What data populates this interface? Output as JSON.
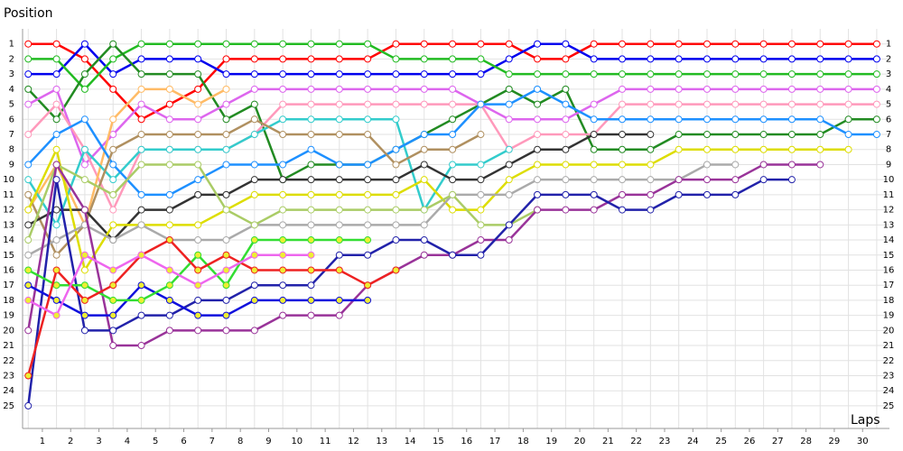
{
  "chart_data": {
    "type": "line",
    "ylabel": "Position",
    "xlabel": "Laps",
    "x": [
      0,
      1,
      2,
      3,
      4,
      5,
      6,
      7,
      8,
      9,
      10,
      11,
      12,
      13,
      14,
      15,
      16,
      17,
      18,
      19,
      20,
      21,
      22,
      23,
      24,
      25,
      26,
      27,
      28,
      29,
      30
    ],
    "xlim": [
      -0.2,
      30.45
    ],
    "xticks": [
      {
        "value": 0.5,
        "label": "1"
      },
      {
        "value": 1.5,
        "label": "2"
      },
      {
        "value": 2.5,
        "label": "3"
      },
      {
        "value": 3.5,
        "label": "4"
      },
      {
        "value": 4.5,
        "label": "5"
      },
      {
        "value": 5.5,
        "label": "6"
      },
      {
        "value": 6.5,
        "label": "7"
      },
      {
        "value": 7.5,
        "label": "8"
      },
      {
        "value": 8.5,
        "label": "9"
      },
      {
        "value": 9.5,
        "label": "10"
      },
      {
        "value": 10.5,
        "label": "11"
      },
      {
        "value": 11.5,
        "label": "12"
      },
      {
        "value": 12.5,
        "label": "13"
      },
      {
        "value": 13.5,
        "label": "14"
      },
      {
        "value": 14.5,
        "label": "15"
      },
      {
        "value": 15.5,
        "label": "16"
      },
      {
        "value": 16.5,
        "label": "17"
      },
      {
        "value": 17.5,
        "label": "18"
      },
      {
        "value": 18.5,
        "label": "19"
      },
      {
        "value": 19.5,
        "label": "20"
      },
      {
        "value": 20.5,
        "label": "21"
      },
      {
        "value": 21.5,
        "label": "22"
      },
      {
        "value": 22.5,
        "label": "23"
      },
      {
        "value": 23.5,
        "label": "24"
      },
      {
        "value": 24.5,
        "label": "25"
      },
      {
        "value": 25.5,
        "label": "26"
      },
      {
        "value": 26.5,
        "label": "27"
      },
      {
        "value": 27.5,
        "label": "28"
      },
      {
        "value": 28.5,
        "label": "29"
      },
      {
        "value": 29.5,
        "label": "30"
      }
    ],
    "ylim": [
      26.5,
      0
    ],
    "yticks": [
      1,
      2,
      3,
      4,
      5,
      6,
      7,
      8,
      9,
      10,
      11,
      12,
      13,
      14,
      15,
      16,
      17,
      18,
      19,
      20,
      21,
      22,
      23,
      24,
      25
    ],
    "grid": true,
    "series": [
      {
        "color": "#ff0000",
        "marker_color": "#ffffff",
        "values": [
          1,
          1,
          2,
          4,
          6,
          5,
          4,
          2,
          2,
          2,
          2,
          2,
          2,
          1,
          1,
          1,
          1,
          1,
          2,
          2,
          1,
          1,
          1,
          1,
          1,
          1,
          1,
          1,
          1,
          1,
          1
        ]
      },
      {
        "color": "#0000ee",
        "marker_color": "#ffffff",
        "values": [
          3,
          3,
          1,
          3,
          2,
          2,
          2,
          3,
          3,
          3,
          3,
          3,
          3,
          3,
          3,
          3,
          3,
          2,
          1,
          1,
          2,
          2,
          2,
          2,
          2,
          2,
          2,
          2,
          2,
          2,
          2
        ]
      },
      {
        "color": "#22bb22",
        "marker_color": "#ffffff",
        "values": [
          2,
          2,
          4,
          2,
          1,
          1,
          1,
          1,
          1,
          1,
          1,
          1,
          1,
          2,
          2,
          2,
          2,
          3,
          3,
          3,
          3,
          3,
          3,
          3,
          3,
          3,
          3,
          3,
          3,
          3,
          3
        ]
      },
      {
        "color": "#228b22",
        "marker_color": "#ffffff",
        "values": [
          4,
          6,
          3,
          1,
          3,
          3,
          3,
          6,
          5,
          10,
          9,
          9,
          9,
          8,
          7,
          6,
          5,
          4,
          5,
          4,
          8,
          8,
          8,
          7,
          7,
          7,
          7,
          7,
          7,
          6,
          6
        ]
      },
      {
        "color": "#dd66ee",
        "marker_color": "#ffffff",
        "values": [
          5,
          4,
          9,
          7,
          5,
          6,
          6,
          5,
          4,
          4,
          4,
          4,
          4,
          4,
          4,
          4,
          5,
          6,
          6,
          6,
          5,
          4,
          4,
          4,
          4,
          4,
          4,
          4,
          4,
          4,
          4
        ]
      },
      {
        "color": "#ff99bb",
        "marker_color": "#ffffff",
        "values": [
          7,
          5,
          8,
          12,
          8,
          8,
          8,
          8,
          7,
          5,
          5,
          5,
          5,
          5,
          5,
          5,
          5,
          8,
          7,
          7,
          7,
          5,
          5,
          5,
          5,
          5,
          5,
          5,
          5,
          5,
          5
        ]
      },
      {
        "color": "#ffbb66",
        "marker_color": "#ffffff",
        "values": [
          12,
          9,
          13,
          6,
          4,
          4,
          5,
          4,
          null,
          null,
          null,
          null,
          null,
          null,
          null,
          null,
          null,
          null,
          null,
          null,
          null,
          null,
          null,
          null,
          null,
          null,
          null,
          null,
          null,
          null,
          null
        ]
      },
      {
        "color": "#33cccc",
        "marker_color": "#ffffff",
        "values": [
          10,
          13,
          8,
          10,
          8,
          8,
          8,
          8,
          7,
          6,
          6,
          6,
          6,
          6,
          12,
          9,
          9,
          8,
          null,
          null,
          null,
          null,
          null,
          null,
          null,
          null,
          null,
          null,
          null,
          null,
          null
        ]
      },
      {
        "color": "#1e90ff",
        "marker_color": "#ffffff",
        "values": [
          9,
          7,
          6,
          9,
          11,
          11,
          10,
          9,
          9,
          9,
          8,
          9,
          9,
          8,
          7,
          7,
          5,
          5,
          4,
          5,
          6,
          6,
          6,
          6,
          6,
          6,
          6,
          6,
          6,
          7,
          7
        ]
      },
      {
        "color": "#b09060",
        "marker_color": "#ffffff",
        "values": [
          11,
          15,
          13,
          8,
          7,
          7,
          7,
          7,
          6,
          7,
          7,
          7,
          7,
          9,
          8,
          8,
          7,
          null,
          null,
          null,
          null,
          null,
          null,
          null,
          null,
          null,
          null,
          null,
          null,
          null,
          null
        ]
      },
      {
        "color": "#333333",
        "marker_color": "#ffffff",
        "values": [
          13,
          12,
          12,
          14,
          12,
          12,
          11,
          11,
          10,
          10,
          10,
          10,
          10,
          10,
          9,
          10,
          10,
          9,
          8,
          8,
          7,
          7,
          7,
          null,
          null,
          null,
          null,
          null,
          null,
          null,
          null
        ]
      },
      {
        "color": "#dddd00",
        "marker_color": "#ffffff",
        "values": [
          12,
          8,
          16,
          13,
          13,
          13,
          13,
          12,
          11,
          11,
          11,
          11,
          11,
          11,
          10,
          12,
          12,
          10,
          9,
          9,
          9,
          9,
          9,
          8,
          8,
          8,
          8,
          8,
          8,
          8,
          null
        ]
      },
      {
        "color": "#aaaaaa",
        "marker_color": "#ffffff",
        "values": [
          15,
          14,
          13,
          14,
          13,
          14,
          14,
          14,
          13,
          13,
          13,
          13,
          13,
          13,
          13,
          11,
          11,
          11,
          10,
          10,
          10,
          10,
          10,
          10,
          9,
          9,
          null,
          null,
          null,
          null,
          null
        ]
      },
      {
        "color": "#aacc66",
        "marker_color": "#ffffff",
        "values": [
          14,
          9,
          10,
          11,
          9,
          9,
          9,
          12,
          13,
          12,
          12,
          12,
          12,
          12,
          12,
          11,
          13,
          13,
          12,
          null,
          null,
          null,
          null,
          null,
          null,
          null,
          null,
          null,
          null,
          null,
          null
        ]
      },
      {
        "color": "#993399",
        "marker_color": "#ffffff",
        "values": [
          20,
          9,
          12,
          21,
          21,
          20,
          20,
          20,
          20,
          19,
          19,
          19,
          17,
          16,
          15,
          15,
          14,
          14,
          12,
          12,
          12,
          11,
          11,
          10,
          10,
          10,
          9,
          9,
          9,
          null,
          null
        ]
      },
      {
        "color": "#2222aa",
        "marker_color": "#ffffff",
        "values": [
          25,
          10,
          20,
          20,
          19,
          19,
          18,
          18,
          17,
          17,
          17,
          15,
          15,
          14,
          14,
          15,
          15,
          13,
          11,
          11,
          11,
          12,
          12,
          11,
          11,
          11,
          10,
          10,
          null,
          null,
          null
        ]
      },
      {
        "color": "#1010dd",
        "marker_color": "#eeee33",
        "values": [
          17,
          18,
          19,
          19,
          17,
          18,
          19,
          19,
          18,
          18,
          18,
          18,
          18,
          null,
          null,
          null,
          null,
          null,
          null,
          null,
          null,
          null,
          null,
          null,
          null,
          null,
          null,
          null,
          null,
          null,
          null
        ]
      },
      {
        "color": "#33dd33",
        "marker_color": "#eeee33",
        "values": [
          16,
          17,
          17,
          18,
          18,
          17,
          15,
          17,
          14,
          14,
          14,
          14,
          14,
          null,
          null,
          null,
          null,
          null,
          null,
          null,
          null,
          null,
          null,
          null,
          null,
          null,
          null,
          null,
          null,
          null,
          null
        ]
      },
      {
        "color": "#ee2222",
        "marker_color": "#eeee33",
        "values": [
          23,
          16,
          18,
          17,
          15,
          14,
          16,
          15,
          16,
          16,
          16,
          16,
          17,
          16,
          null,
          null,
          null,
          null,
          null,
          null,
          null,
          null,
          null,
          null,
          null,
          null,
          null,
          null,
          null,
          null,
          null
        ]
      },
      {
        "color": "#ee66ee",
        "marker_color": "#eeee33",
        "values": [
          18,
          19,
          15,
          16,
          15,
          16,
          17,
          16,
          15,
          15,
          15,
          null,
          null,
          null,
          null,
          null,
          null,
          null,
          null,
          null,
          null,
          null,
          null,
          null,
          null,
          null,
          null,
          null,
          null,
          null,
          null
        ]
      }
    ]
  }
}
